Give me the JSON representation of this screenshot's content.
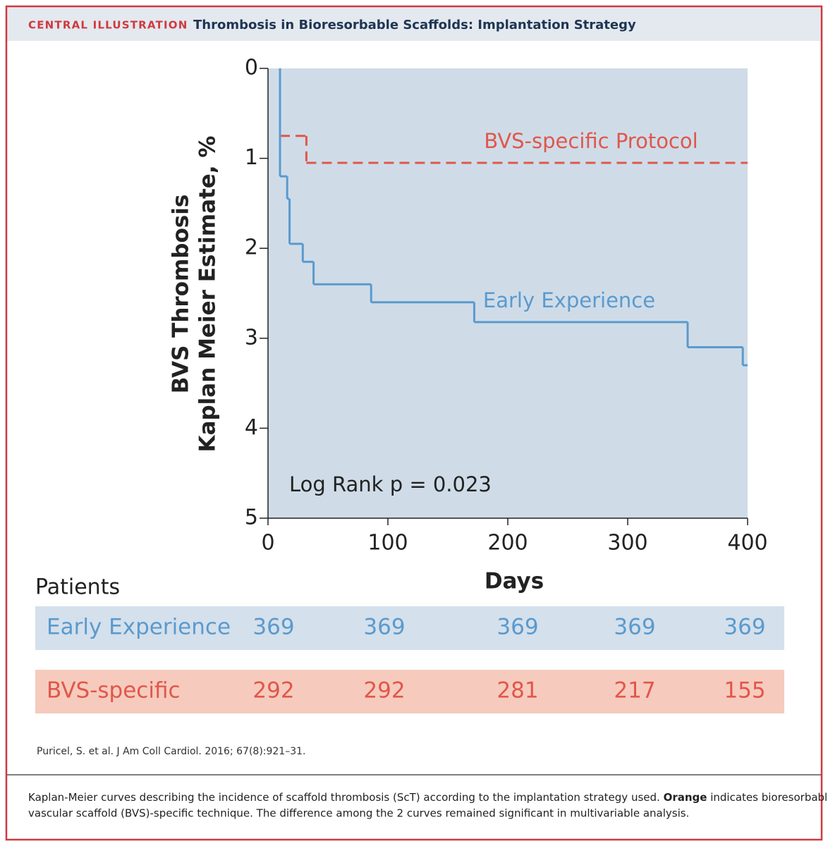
{
  "header": {
    "label": "CENTRAL ILLUSTRATION",
    "title": "Thrombosis in Bioresorbable Scaffolds: Implantation Strategy"
  },
  "chart_data": {
    "type": "step",
    "ylabel": [
      "BVS Thrombosis",
      "Kaplan Meier Estimate, %"
    ],
    "xlabel": "Days",
    "xlim": [
      0,
      400
    ],
    "xticks": [
      0,
      100,
      200,
      300,
      400
    ],
    "ylim": [
      0,
      5
    ],
    "yticks": [
      0,
      1,
      2,
      3,
      4,
      5
    ],
    "y_inverted": true,
    "background": "#cfdce8",
    "series": [
      {
        "name": "BVS-specific Protocol",
        "color": "#e0574b",
        "dashed": true,
        "x": [
          10,
          10,
          32
        ],
        "values": [
          0,
          0.75,
          1.05
        ]
      },
      {
        "name": "Early Experience",
        "color": "#5b9acd",
        "dashed": false,
        "x": [
          10,
          10,
          16,
          18,
          29,
          38,
          86,
          172,
          350,
          396
        ],
        "values": [
          0,
          1.2,
          1.45,
          1.95,
          2.15,
          2.4,
          2.6,
          2.82,
          3.1,
          3.3
        ]
      }
    ],
    "annotations": [
      "Log Rank p = 0.023"
    ]
  },
  "risk_table": {
    "title": "Patients",
    "rows": [
      {
        "name": "Early Experience",
        "color": "#5b9acd",
        "background": "#d4e0ec",
        "values": [
          369,
          369,
          369,
          369,
          369
        ]
      },
      {
        "name": "BVS-specific",
        "color": "#e0574b",
        "background": "#f6cbbd",
        "values": [
          292,
          292,
          281,
          217,
          155
        ]
      }
    ]
  },
  "citation": "Puricel, S. et al. J Am Coll Cardiol. 2016; 67(8):921–31.",
  "caption": [
    "Kaplan-Meier curves describing the incidence of scaffold thrombosis (ScT) according to the implantation strategy used.",
    "Orange",
    "indicates bioresorbable",
    "vascular scaffold (BVS)-specific technique. The difference among the 2 curves remained significant in multivariable analysis."
  ]
}
